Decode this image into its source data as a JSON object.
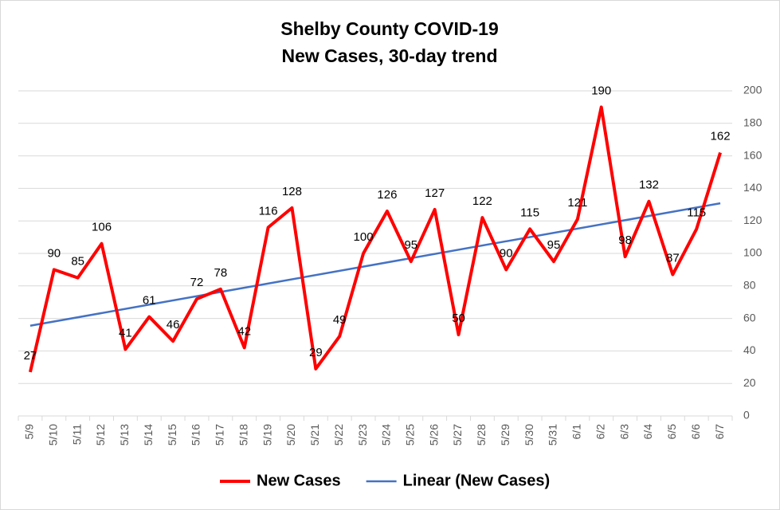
{
  "chart_data": {
    "type": "line",
    "title": "Shelby County COVID-19",
    "subtitle": "New Cases, 30-day trend",
    "categories": [
      "5/9",
      "5/10",
      "5/11",
      "5/12",
      "5/13",
      "5/14",
      "5/15",
      "5/16",
      "5/17",
      "5/18",
      "5/19",
      "5/20",
      "5/21",
      "5/22",
      "5/23",
      "5/24",
      "5/25",
      "5/26",
      "5/27",
      "5/28",
      "5/29",
      "5/30",
      "5/31",
      "6/1",
      "6/2",
      "6/3",
      "6/4",
      "6/5",
      "6/6",
      "6/7"
    ],
    "series": [
      {
        "name": "New Cases",
        "color": "#ff0000",
        "values": [
          27,
          90,
          85,
          106,
          41,
          61,
          46,
          72,
          78,
          42,
          116,
          128,
          29,
          49,
          100,
          126,
          95,
          127,
          50,
          122,
          90,
          115,
          95,
          121,
          190,
          98,
          132,
          87,
          115,
          162
        ]
      }
    ],
    "trendline": {
      "name": "Linear (New Cases)",
      "color": "#4472c4",
      "fit": "linear"
    },
    "ylim": [
      0,
      200
    ],
    "yticks": [
      0,
      20,
      40,
      60,
      80,
      100,
      120,
      140,
      160,
      180,
      200
    ],
    "y_axis_side": "right",
    "grid": true,
    "legend": "bottom"
  }
}
